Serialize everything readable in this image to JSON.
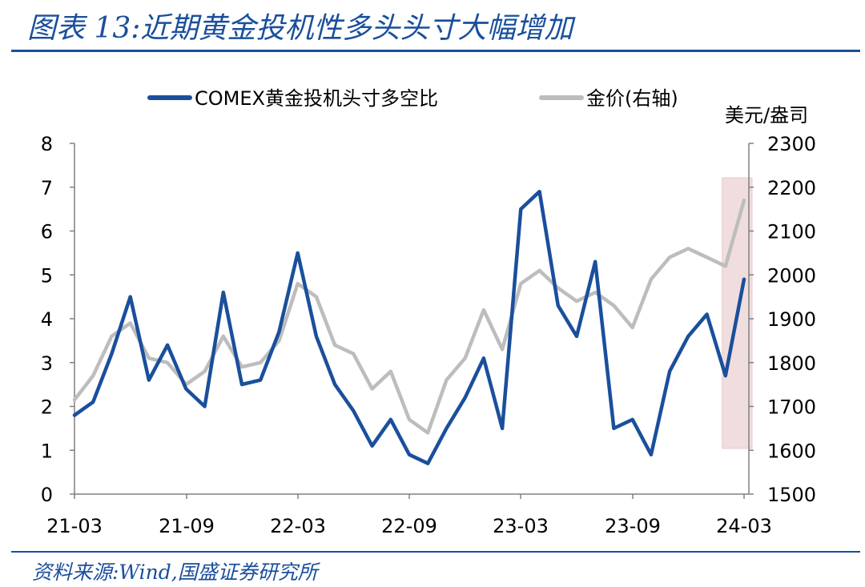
{
  "header": {
    "title": "图表 13:近期黄金投机性多头头寸大幅增加"
  },
  "footer": {
    "source": "资料来源:Wind,国盛证券研究所"
  },
  "chart_data": {
    "type": "line",
    "title": "图表 13:近期黄金投机性多头头寸大幅增加",
    "x_ticks": [
      "21-03",
      "21-09",
      "22-03",
      "22-09",
      "23-03",
      "23-09",
      "24-03"
    ],
    "y_left": {
      "ticks": [
        "0",
        "1",
        "2",
        "3",
        "4",
        "5",
        "6",
        "7",
        "8"
      ],
      "range": [
        0,
        8
      ]
    },
    "y_right": {
      "ticks": [
        "1500",
        "1600",
        "1700",
        "1800",
        "1900",
        "2000",
        "2100",
        "2200",
        "2300"
      ],
      "range": [
        1500,
        2300
      ],
      "unit": "美元/盎司"
    },
    "legend_position": "top",
    "grid": false,
    "highlight": {
      "from": "2024-02",
      "to": "2024-03",
      "color": "#f0dede"
    },
    "series": [
      {
        "name": "COMEX黄金投机头寸多空比",
        "axis": "left",
        "color": "#1a4f9c",
        "x": [
          "2021-03",
          "2021-04",
          "2021-05",
          "2021-06",
          "2021-07",
          "2021-08",
          "2021-09",
          "2021-10",
          "2021-11",
          "2021-12",
          "2022-01",
          "2022-02",
          "2022-03",
          "2022-04",
          "2022-05",
          "2022-06",
          "2022-07",
          "2022-08",
          "2022-09",
          "2022-10",
          "2022-11",
          "2022-12",
          "2023-01",
          "2023-02",
          "2023-03",
          "2023-04",
          "2023-05",
          "2023-06",
          "2023-07",
          "2023-08",
          "2023-09",
          "2023-10",
          "2023-11",
          "2023-12",
          "2024-01",
          "2024-02",
          "2024-03"
        ],
        "values": [
          1.8,
          2.1,
          3.2,
          4.5,
          2.6,
          3.4,
          2.4,
          2.0,
          4.6,
          2.5,
          2.6,
          3.7,
          5.5,
          3.6,
          2.5,
          1.9,
          1.1,
          1.7,
          0.9,
          0.7,
          1.5,
          2.2,
          3.1,
          1.5,
          6.5,
          6.9,
          4.3,
          3.6,
          5.3,
          1.5,
          1.7,
          0.9,
          2.8,
          3.6,
          4.1,
          2.7,
          4.9
        ]
      },
      {
        "name": "金价(右轴)",
        "axis": "right",
        "color": "#bdbdbd",
        "x": [
          "2021-03",
          "2021-04",
          "2021-05",
          "2021-06",
          "2021-07",
          "2021-08",
          "2021-09",
          "2021-10",
          "2021-11",
          "2021-12",
          "2022-01",
          "2022-02",
          "2022-03",
          "2022-04",
          "2022-05",
          "2022-06",
          "2022-07",
          "2022-08",
          "2022-09",
          "2022-10",
          "2022-11",
          "2022-12",
          "2023-01",
          "2023-02",
          "2023-03",
          "2023-04",
          "2023-05",
          "2023-06",
          "2023-07",
          "2023-08",
          "2023-09",
          "2023-10",
          "2023-11",
          "2023-12",
          "2024-01",
          "2024-02",
          "2024-03"
        ],
        "values": [
          1715,
          1770,
          1860,
          1890,
          1810,
          1800,
          1750,
          1780,
          1860,
          1790,
          1800,
          1850,
          1980,
          1950,
          1840,
          1820,
          1740,
          1780,
          1670,
          1640,
          1760,
          1810,
          1920,
          1830,
          1980,
          2010,
          1970,
          1940,
          1960,
          1930,
          1880,
          1990,
          2040,
          2060,
          2040,
          2020,
          2170
        ]
      }
    ]
  }
}
